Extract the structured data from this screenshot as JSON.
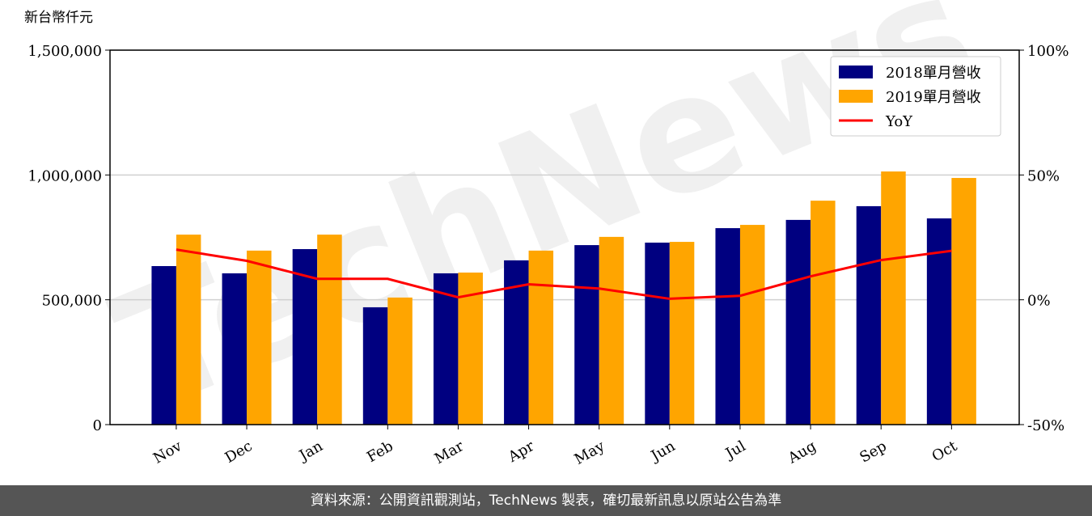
{
  "chart_data": {
    "type": "bar",
    "ylabel": "新台幣仟元",
    "watermark": "TechNews",
    "categories": [
      "Nov",
      "Dec",
      "Jan",
      "Feb",
      "Mar",
      "Apr",
      "May",
      "Jun",
      "Jul",
      "Aug",
      "Sep",
      "Oct"
    ],
    "series": [
      {
        "name": "2018單月營收",
        "color": "#000080",
        "values": [
          635000,
          606000,
          703000,
          470000,
          606000,
          658000,
          719000,
          729000,
          787000,
          820000,
          875000,
          826000
        ]
      },
      {
        "name": "2019單月營收",
        "color": "#ffa500",
        "values": [
          761000,
          697000,
          761000,
          509000,
          609000,
          697000,
          752000,
          732000,
          800000,
          897000,
          1014000,
          988000
        ]
      },
      {
        "name": "YoY",
        "color": "#ff0000",
        "type": "line",
        "axis": "y2",
        "values": [
          20.1,
          15.6,
          8.4,
          8.4,
          1.0,
          6.2,
          4.5,
          0.4,
          1.6,
          9.4,
          15.9,
          19.6
        ]
      }
    ],
    "ylim": [
      0,
      1500000
    ],
    "yticks": [
      0,
      {
        "value": 500000,
        "label": "500,000"
      },
      {
        "value": 1000000,
        "label": "1,000,000"
      },
      {
        "value": 1500000,
        "label": "1,500,000"
      }
    ],
    "y2lim": [
      -50,
      100
    ],
    "y2ticks": [
      {
        "value": -50,
        "label": "-50%"
      },
      {
        "value": 0,
        "label": "0%"
      },
      {
        "value": 50,
        "label": "50%"
      },
      {
        "value": 100,
        "label": "100%"
      }
    ],
    "grid": true,
    "legend": "upper right"
  },
  "footer": "資料來源：公開資訊觀測站，TechNews 製表，確切最新訊息以原站公告為準"
}
